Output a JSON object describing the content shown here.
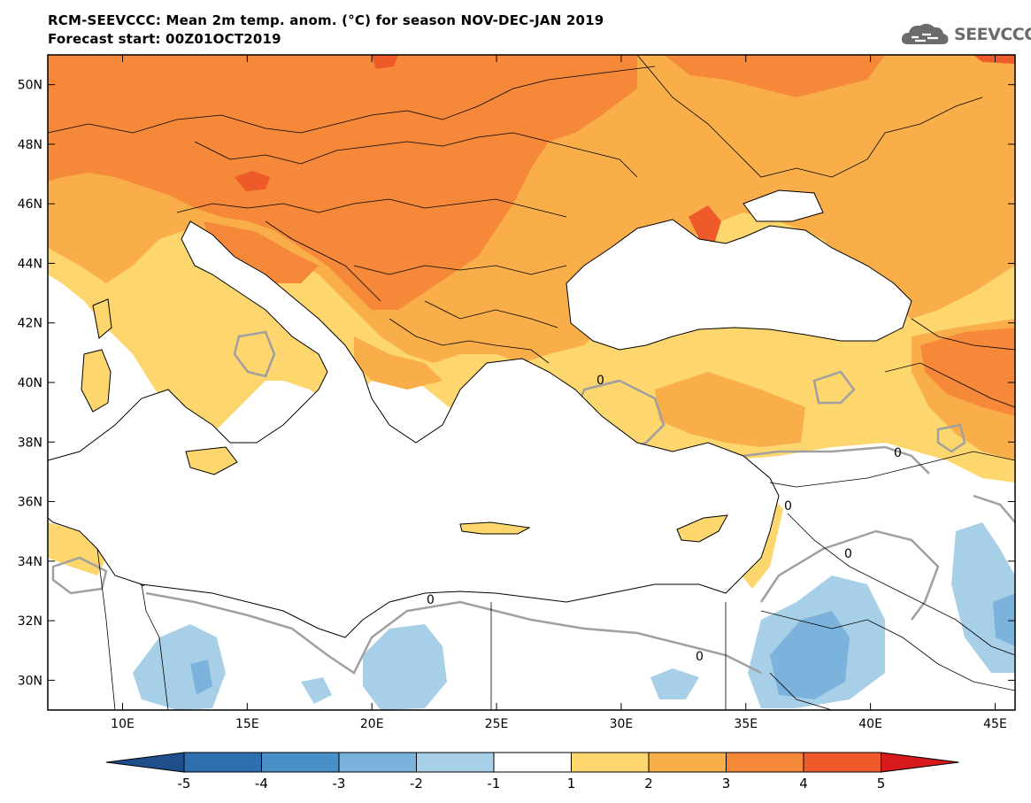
{
  "title_line1": "RCM-SEEVCCC: Mean 2m temp. anom. (°C) for season NOV-DEC-JAN 2019",
  "title_line2": "Forecast start: 00Z01OCT2019",
  "logo": {
    "text": "SEEVCCC",
    "icon": "cloud-icon"
  },
  "map": {
    "lon_range": [
      7,
      45.8
    ],
    "lat_range": [
      29,
      51
    ],
    "lat_ticks": [
      {
        "value": 30,
        "label": "30N"
      },
      {
        "value": 32,
        "label": "32N"
      },
      {
        "value": 34,
        "label": "34N"
      },
      {
        "value": 36,
        "label": "36N"
      },
      {
        "value": 38,
        "label": "38N"
      },
      {
        "value": 40,
        "label": "40N"
      },
      {
        "value": 42,
        "label": "42N"
      },
      {
        "value": 44,
        "label": "44N"
      },
      {
        "value": 46,
        "label": "46N"
      },
      {
        "value": 48,
        "label": "48N"
      },
      {
        "value": 50,
        "label": "50N"
      }
    ],
    "lon_ticks": [
      {
        "value": 10,
        "label": "10E"
      },
      {
        "value": 15,
        "label": "15E"
      },
      {
        "value": 20,
        "label": "20E"
      },
      {
        "value": 25,
        "label": "25E"
      },
      {
        "value": 30,
        "label": "30E"
      },
      {
        "value": 35,
        "label": "35E"
      },
      {
        "value": 40,
        "label": "40E"
      },
      {
        "value": 45,
        "label": "45E"
      }
    ],
    "zero_contour_label": "0"
  },
  "colorbar": {
    "levels": [
      "-5",
      "-4",
      "-3",
      "-2",
      "-1",
      "1",
      "2",
      "3",
      "4",
      "5"
    ],
    "colors": [
      "#1f4e8c",
      "#2e6fb0",
      "#4a90c8",
      "#7cb3dc",
      "#a8cfe8",
      "#ffffff",
      "#fdd66e",
      "#f9ae4a",
      "#f6883a",
      "#ef5a2a",
      "#d7191c"
    ]
  }
}
